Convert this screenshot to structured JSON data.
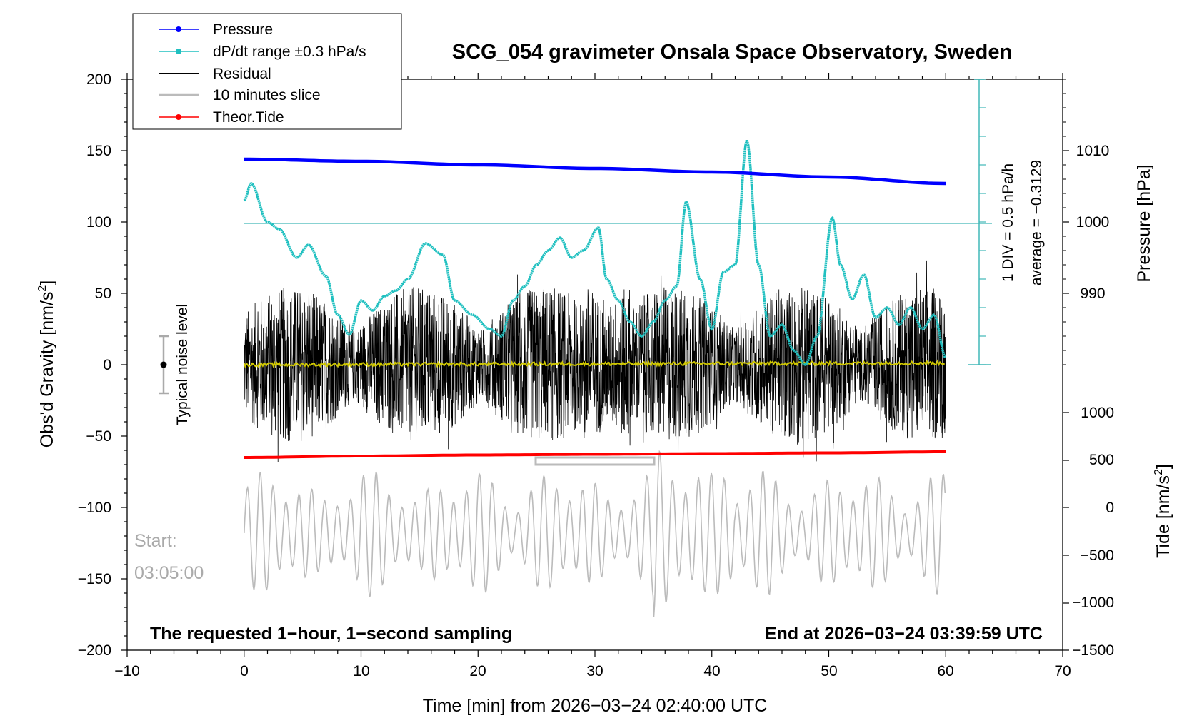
{
  "chart_data": {
    "type": "line",
    "title": "SCG_054 gravimeter Onsala Space Observatory, Sweden",
    "xlabel": "Time [min] from 2026−03−24 02:40:00 UTC",
    "ylabel_main": "Obs'd Gravity [nm/s",
    "ylabel_sup": "2",
    "ylabel_close": "]",
    "ylabel_pressure": "Pressure [hPa]",
    "ylabel_tide": "Tide [nm/s",
    "ylabel_tide_sup": "2",
    "ylabel_tide_close": "]",
    "xlim": [
      -10,
      70
    ],
    "ylim": [
      -200,
      200
    ],
    "x_ticks": [
      "−10",
      "0",
      "10",
      "20",
      "30",
      "40",
      "50",
      "60",
      "70"
    ],
    "y_ticks": [
      "200",
      "150",
      "100",
      "50",
      "0",
      "−50",
      "−100",
      "−150",
      "−200"
    ],
    "pressure_ticks": [
      "1010",
      "1000",
      "990"
    ],
    "tide_ticks": [
      "1000",
      "500",
      "0",
      "−500",
      "−1000",
      "−1500"
    ],
    "legend": [
      {
        "name": "Pressure",
        "color": "#0000ff",
        "marker": true
      },
      {
        "name": "dP/dt range ±0.3 hPa/s",
        "color": "#20c0c0",
        "marker": true
      },
      {
        "name": "Residual",
        "color": "#000000",
        "marker": false
      },
      {
        "name": "10 minutes slice",
        "color": "#bbbbbb",
        "marker": false
      },
      {
        "name": "Theor.Tide",
        "color": "#ff0000",
        "marker": true
      }
    ],
    "annotations": {
      "noise_level": "Typical noise level",
      "start_label": "Start:",
      "start_time": "03:05:00",
      "bottom_left": "The requested 1−hour, 1−second sampling",
      "bottom_right": "End at 2026−03−24 03:39:59 UTC",
      "scale_div": "1 DIV = 0.5 hPa/h",
      "average": "average = −0.3129"
    },
    "series": [
      {
        "name": "Pressure",
        "unit": "hPa",
        "x": [
          0,
          10,
          20,
          30,
          40,
          50,
          60
        ],
        "values": [
          1008.8,
          1008.5,
          1008.0,
          1007.5,
          1007.0,
          1006.3,
          1005.4
        ]
      },
      {
        "name": "Theor.Tide",
        "unit": "nm/s2",
        "x": [
          0,
          10,
          20,
          30,
          40,
          50,
          60
        ],
        "values": [
          530,
          570,
          600,
          620,
          640,
          660,
          690
        ]
      },
      {
        "name": "dP/dt",
        "unit": "nm/s2 axis",
        "x": [
          0,
          0.6,
          2,
          3,
          4.5,
          5.5,
          7,
          8,
          9,
          10,
          11,
          12,
          13,
          14,
          15.5,
          17,
          18,
          19.5,
          21,
          22,
          23,
          24,
          25,
          26,
          27,
          28,
          29,
          30.3,
          31,
          32,
          33,
          34,
          35,
          36,
          37,
          37.8,
          39,
          40,
          41,
          42,
          43,
          44,
          45,
          46,
          47,
          48,
          49,
          50.3,
          51,
          52,
          53,
          54,
          55,
          56,
          57,
          58,
          59,
          60
        ],
        "values": [
          115,
          127,
          100,
          95,
          75,
          84,
          62,
          35,
          21,
          45,
          38,
          48,
          52,
          60,
          85,
          77,
          45,
          35,
          25,
          20,
          45,
          55,
          70,
          80,
          89,
          75,
          80,
          96,
          60,
          45,
          30,
          20,
          30,
          45,
          55,
          114,
          60,
          25,
          65,
          70,
          157,
          70,
          20,
          28,
          10,
          0,
          20,
          103,
          70,
          46,
          63,
          33,
          40,
          28,
          40,
          25,
          35,
          5
        ]
      }
    ],
    "residual_range": [
      -80,
      80
    ],
    "slice_range_tide": [
      -1500,
      500
    ]
  }
}
